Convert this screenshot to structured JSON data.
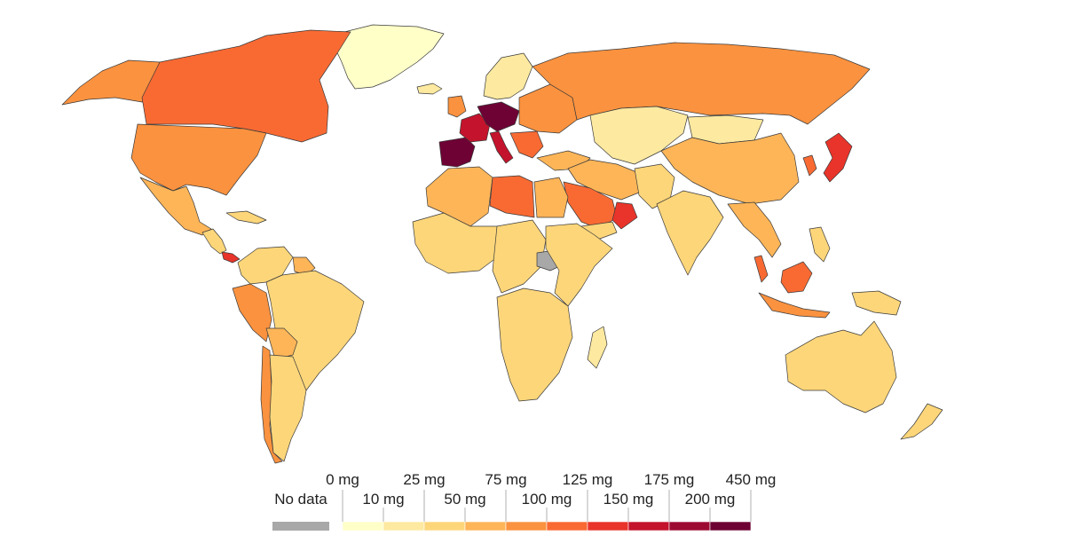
{
  "colors": {
    "no_data": "#a8a8a8",
    "bin_0": "#ffffc8",
    "bin_1": "#fde9a0",
    "bin_2": "#fdd67a",
    "bin_3": "#fdb558",
    "bin_4": "#fb923f",
    "bin_5": "#f96a33",
    "bin_6": "#e8342a",
    "bin_7": "#c4132c",
    "bin_8": "#9c0a32",
    "bin_9": "#6e0234",
    "border": "#3a3a3a"
  },
  "legend": {
    "no_data_label": "No data",
    "bins": [
      {
        "label": "0 mg",
        "row": "top"
      },
      {
        "label": "10 mg",
        "row": "bottom"
      },
      {
        "label": "25 mg",
        "row": "top"
      },
      {
        "label": "50 mg",
        "row": "bottom"
      },
      {
        "label": "75 mg",
        "row": "top"
      },
      {
        "label": "100 mg",
        "row": "bottom"
      },
      {
        "label": "125 mg",
        "row": "top"
      },
      {
        "label": "150 mg",
        "row": "bottom"
      },
      {
        "label": "175 mg",
        "row": "top"
      },
      {
        "label": "200 mg",
        "row": "bottom"
      },
      {
        "label": "450 mg",
        "row": "top"
      }
    ]
  },
  "regions": [
    {
      "name": "greenland",
      "bin": "bin_0"
    },
    {
      "name": "canada",
      "bin": "bin_5"
    },
    {
      "name": "alaska",
      "bin": "bin_4"
    },
    {
      "name": "usa",
      "bin": "bin_4"
    },
    {
      "name": "mexico",
      "bin": "bin_3"
    },
    {
      "name": "central-america",
      "bin": "bin_2"
    },
    {
      "name": "panama",
      "bin": "bin_6"
    },
    {
      "name": "cuba",
      "bin": "bin_2"
    },
    {
      "name": "colombia-venezuela",
      "bin": "bin_2"
    },
    {
      "name": "guianas",
      "bin": "bin_3"
    },
    {
      "name": "peru",
      "bin": "bin_4"
    },
    {
      "name": "brazil",
      "bin": "bin_2"
    },
    {
      "name": "bolivia",
      "bin": "bin_3"
    },
    {
      "name": "argentina",
      "bin": "bin_2"
    },
    {
      "name": "chile",
      "bin": "bin_4"
    },
    {
      "name": "iberia",
      "bin": "bin_9"
    },
    {
      "name": "france",
      "bin": "bin_7"
    },
    {
      "name": "germany-central",
      "bin": "bin_9"
    },
    {
      "name": "italy",
      "bin": "bin_7"
    },
    {
      "name": "uk-ireland",
      "bin": "bin_4"
    },
    {
      "name": "scandinavia",
      "bin": "bin_1"
    },
    {
      "name": "eastern-europe",
      "bin": "bin_4"
    },
    {
      "name": "balkans",
      "bin": "bin_5"
    },
    {
      "name": "russia",
      "bin": "bin_4"
    },
    {
      "name": "kazakhstan-central-asia",
      "bin": "bin_1"
    },
    {
      "name": "mongolia",
      "bin": "bin_1"
    },
    {
      "name": "china",
      "bin": "bin_3"
    },
    {
      "name": "korea",
      "bin": "bin_5"
    },
    {
      "name": "japan",
      "bin": "bin_6"
    },
    {
      "name": "turkey",
      "bin": "bin_3"
    },
    {
      "name": "iran-middle-east",
      "bin": "bin_3"
    },
    {
      "name": "saudi-arabia",
      "bin": "bin_5"
    },
    {
      "name": "oman",
      "bin": "bin_6"
    },
    {
      "name": "yemen",
      "bin": "bin_2"
    },
    {
      "name": "afghanistan-pakistan",
      "bin": "bin_2"
    },
    {
      "name": "india",
      "bin": "bin_2"
    },
    {
      "name": "southeast-asia",
      "bin": "bin_3"
    },
    {
      "name": "malaysia",
      "bin": "bin_5"
    },
    {
      "name": "borneo",
      "bin": "bin_5"
    },
    {
      "name": "indonesia",
      "bin": "bin_4"
    },
    {
      "name": "philippines",
      "bin": "bin_2"
    },
    {
      "name": "papua",
      "bin": "bin_2"
    },
    {
      "name": "australia",
      "bin": "bin_2"
    },
    {
      "name": "new-zealand",
      "bin": "bin_2"
    },
    {
      "name": "morocco-algeria",
      "bin": "bin_3"
    },
    {
      "name": "libya",
      "bin": "bin_5"
    },
    {
      "name": "egypt",
      "bin": "bin_3"
    },
    {
      "name": "west-africa",
      "bin": "bin_2"
    },
    {
      "name": "central-africa",
      "bin": "bin_2"
    },
    {
      "name": "south-sudan",
      "bin": "no_data"
    },
    {
      "name": "east-africa",
      "bin": "bin_2"
    },
    {
      "name": "southern-africa",
      "bin": "bin_2"
    },
    {
      "name": "madagascar",
      "bin": "bin_1"
    },
    {
      "name": "iceland",
      "bin": "bin_1"
    }
  ]
}
